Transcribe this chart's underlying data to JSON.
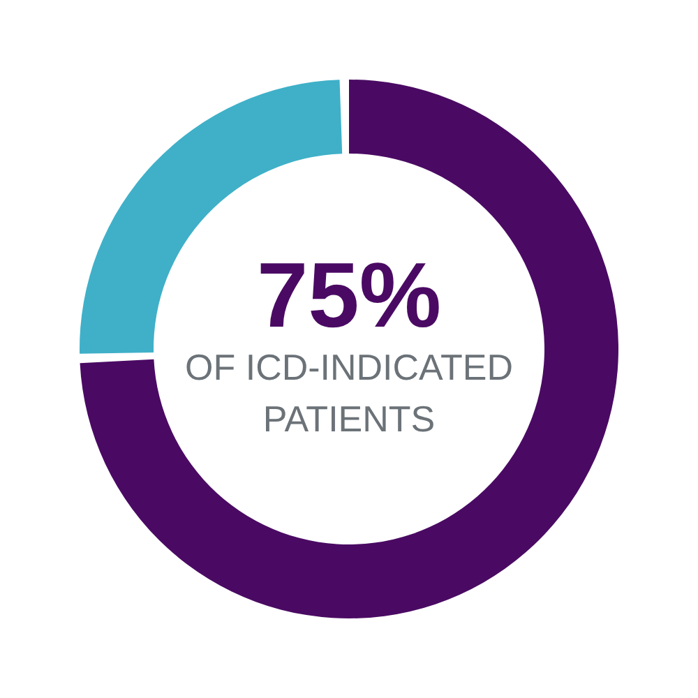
{
  "chart_data": {
    "type": "donut",
    "categories": [
      null,
      null
    ],
    "values": [
      75,
      25
    ],
    "colors": [
      "#4a0a63",
      "#3fb0c8"
    ],
    "value_labels": [
      "75%",
      null
    ],
    "annotations": [
      "OF ICD-INDICATED PATIENTS"
    ]
  }
}
